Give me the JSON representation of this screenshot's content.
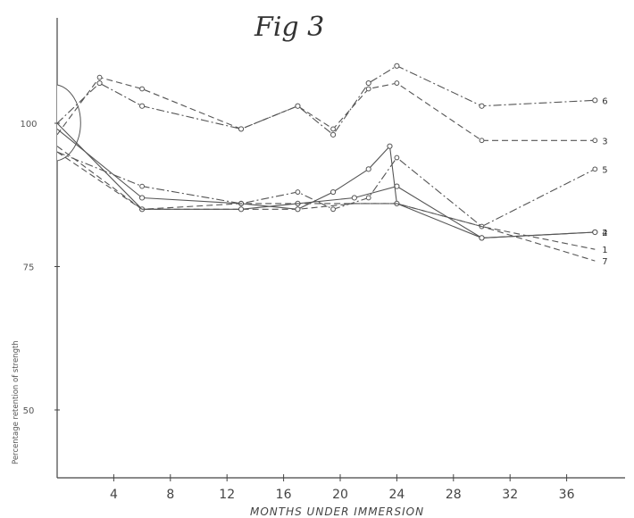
{
  "chart_data": {
    "type": "line",
    "title": "Fig 3",
    "xlabel": "MONTHS UNDER IMMERSION",
    "ylabel": "Percentage retention of strength",
    "xlim": [
      0,
      40
    ],
    "ylim": [
      40,
      112
    ],
    "x_ticks": [
      {
        "value": 4,
        "label": "4"
      },
      {
        "value": 8,
        "label": "8"
      },
      {
        "value": 12,
        "label": "12"
      },
      {
        "value": 16,
        "label": "16"
      },
      {
        "value": 20,
        "label": "20"
      },
      {
        "value": 24,
        "label": "24"
      },
      {
        "value": 28,
        "label": "28"
      },
      {
        "value": 32,
        "label": "32"
      },
      {
        "value": 36,
        "label": "36"
      }
    ],
    "y_ticks": [
      {
        "value": 50,
        "label": "50"
      },
      {
        "value": 75,
        "label": "75"
      },
      {
        "value": 100,
        "label": "100"
      }
    ],
    "grid": false,
    "series": [
      {
        "name": "1",
        "style": "dash",
        "marker": "none",
        "x": [
          0,
          6,
          13,
          17,
          21,
          24,
          30,
          38
        ],
        "y": [
          96,
          85,
          85,
          85,
          86,
          86,
          82,
          78
        ]
      },
      {
        "name": "2",
        "style": "solid",
        "marker": "open",
        "x": [
          0,
          6,
          13,
          17,
          21,
          24,
          30,
          38
        ],
        "y": [
          100,
          85,
          85,
          86,
          87,
          89,
          80,
          81
        ]
      },
      {
        "name": "3",
        "style": "dash",
        "marker": "filled",
        "x": [
          0,
          3,
          6,
          13,
          17,
          19.5,
          22,
          24,
          30,
          38
        ],
        "y": [
          98,
          108,
          106,
          99,
          103,
          99,
          106,
          107,
          97,
          97
        ]
      },
      {
        "name": "4",
        "style": "solid",
        "marker": "open",
        "x": [
          0,
          6,
          13,
          17,
          19.5,
          22,
          23.5,
          24,
          30,
          38
        ],
        "y": [
          99,
          87,
          86,
          85,
          88,
          92,
          96,
          86,
          80,
          81
        ]
      },
      {
        "name": "5",
        "style": "dash-dot",
        "marker": "filled",
        "x": [
          0,
          6,
          13,
          17,
          19.5,
          22,
          24,
          30,
          38
        ],
        "y": [
          95,
          89,
          86,
          88,
          85,
          87,
          94,
          82,
          92
        ]
      },
      {
        "name": "6",
        "style": "dash-dot",
        "marker": "open",
        "x": [
          0,
          3,
          6,
          13,
          17,
          19.5,
          22,
          24,
          30,
          38
        ],
        "y": [
          100,
          107,
          103,
          99,
          103,
          98,
          107,
          110,
          103,
          104
        ]
      },
      {
        "name": "7",
        "style": "dash",
        "marker": "none",
        "x": [
          0,
          6,
          13,
          17,
          21,
          24,
          30,
          38
        ],
        "y": [
          95,
          85,
          86,
          86,
          86,
          86,
          82,
          76
        ]
      }
    ]
  }
}
